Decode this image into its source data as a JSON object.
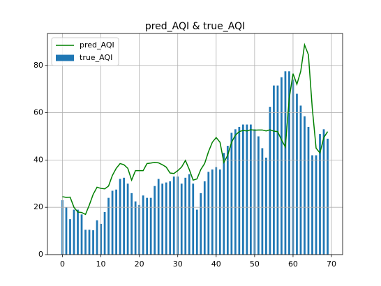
{
  "chart_data": {
    "type": "bar",
    "title": "pred_AQI & true_AQI",
    "x": [
      0,
      1,
      2,
      3,
      4,
      5,
      6,
      7,
      8,
      9,
      10,
      11,
      12,
      13,
      14,
      15,
      16,
      17,
      18,
      19,
      20,
      21,
      22,
      23,
      24,
      25,
      26,
      27,
      28,
      29,
      30,
      31,
      32,
      33,
      34,
      35,
      36,
      37,
      38,
      39,
      40,
      41,
      42,
      43,
      44,
      45,
      46,
      47,
      48,
      49,
      50,
      51,
      52,
      53,
      54,
      55,
      56,
      57,
      58,
      59,
      60,
      61,
      62,
      63,
      64,
      65,
      66,
      67,
      68,
      69
    ],
    "series": [
      {
        "name": "pred_AQI",
        "type": "line",
        "color": "#008000",
        "values": [
          24.5,
          24.2,
          24.3,
          20,
          18,
          17.8,
          17,
          21,
          25.5,
          28.5,
          28,
          27.8,
          29,
          33.5,
          36.5,
          38.5,
          38,
          36.5,
          31.5,
          35.5,
          35.5,
          35.5,
          38.5,
          38.7,
          39,
          38.8,
          38,
          37,
          34.5,
          34.3,
          35.5,
          37,
          39.8,
          36,
          31.5,
          32,
          36,
          38.5,
          43.5,
          47.5,
          49.5,
          47.5,
          39,
          42,
          47.5,
          50.5,
          52,
          52.5,
          52.3,
          52.8,
          52.6,
          52.7,
          52.7,
          52.3,
          52.8,
          52.2,
          52,
          48.5,
          45.5,
          66,
          76.5,
          72,
          77.5,
          88.7,
          84.5,
          62,
          45,
          43,
          49.5,
          52
        ]
      },
      {
        "name": "true_AQI",
        "type": "bar",
        "color": "#1f77b4",
        "values": [
          23,
          20,
          15,
          19,
          19,
          17,
          10.5,
          10.5,
          10.3,
          14.5,
          13,
          18,
          24,
          27,
          27.5,
          32,
          32.5,
          30,
          26,
          22.5,
          21,
          25,
          24,
          24,
          29,
          32,
          30,
          30.5,
          31,
          33,
          33,
          30,
          32.5,
          34,
          30,
          19,
          26,
          31,
          35,
          36,
          37,
          36,
          43,
          46,
          51.5,
          53,
          54,
          55,
          55,
          55,
          53,
          50,
          45,
          41,
          62.5,
          71.5,
          71.5,
          75,
          77.5,
          77.5,
          74,
          68,
          63,
          58.5,
          54,
          42,
          42,
          51,
          53,
          49
        ]
      }
    ],
    "xlim": [
      -3.9,
      72.9
    ],
    "xticks": [
      0,
      10,
      20,
      30,
      40,
      50,
      60,
      70
    ],
    "ylim": [
      0,
      93.5
    ],
    "yticks": [
      0,
      20,
      40,
      60,
      80
    ],
    "grid": true,
    "legend": "upper-left"
  }
}
